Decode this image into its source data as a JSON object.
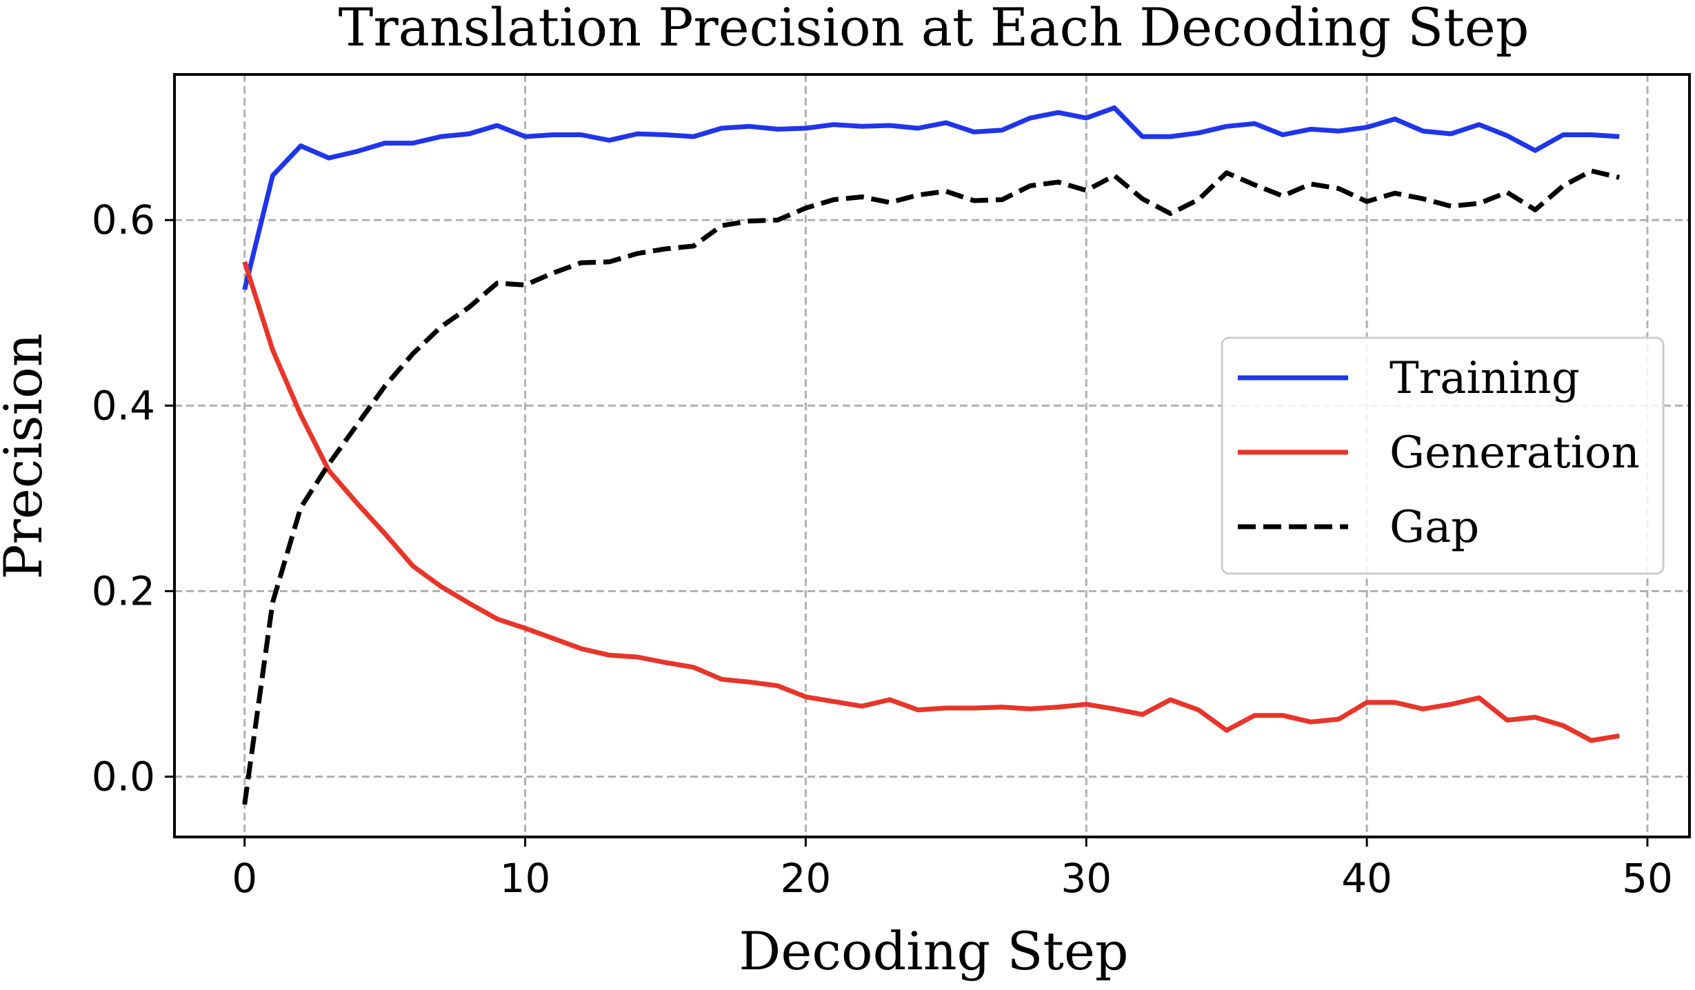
{
  "chart_data": {
    "type": "line",
    "title": "Translation Precision at Each Decoding Step",
    "xlabel": "Decoding Step",
    "ylabel": "Precision",
    "xlim": [
      -2.5,
      51.5
    ],
    "ylim": [
      -0.065,
      0.757
    ],
    "xticks": [
      0,
      10,
      20,
      30,
      40,
      50
    ],
    "xtick_labels": [
      "0",
      "10",
      "20",
      "30",
      "40",
      "50"
    ],
    "yticks": [
      0.0,
      0.2,
      0.4,
      0.6
    ],
    "ytick_labels": [
      "0.0",
      "0.2",
      "0.4",
      "0.6"
    ],
    "grid": true,
    "legend_position": "center-right",
    "x": [
      0,
      1,
      2,
      3,
      4,
      5,
      6,
      7,
      8,
      9,
      10,
      11,
      12,
      13,
      14,
      15,
      16,
      17,
      18,
      19,
      20,
      21,
      22,
      23,
      24,
      25,
      26,
      27,
      28,
      29,
      30,
      31,
      32,
      33,
      34,
      35,
      36,
      37,
      38,
      39,
      40,
      41,
      42,
      43,
      44,
      45,
      46,
      47,
      48,
      49
    ],
    "series": [
      {
        "name": "Training",
        "color": "#1f35ea",
        "dash": "solid",
        "values": [
          0.525,
          0.648,
          0.68,
          0.667,
          0.674,
          0.683,
          0.683,
          0.69,
          0.693,
          0.702,
          0.69,
          0.692,
          0.692,
          0.686,
          0.693,
          0.692,
          0.69,
          0.699,
          0.701,
          0.698,
          0.699,
          0.703,
          0.701,
          0.702,
          0.699,
          0.705,
          0.695,
          0.697,
          0.71,
          0.716,
          0.71,
          0.721,
          0.69,
          0.69,
          0.694,
          0.701,
          0.704,
          0.692,
          0.698,
          0.696,
          0.7,
          0.709,
          0.696,
          0.693,
          0.703,
          0.691,
          0.675,
          0.692,
          0.692,
          0.69
        ]
      },
      {
        "name": "Generation",
        "color": "#e8352a",
        "dash": "solid",
        "values": [
          0.555,
          0.46,
          0.39,
          0.33,
          0.295,
          0.262,
          0.227,
          0.205,
          0.187,
          0.17,
          0.16,
          0.149,
          0.138,
          0.131,
          0.129,
          0.123,
          0.118,
          0.105,
          0.102,
          0.098,
          0.086,
          0.081,
          0.076,
          0.083,
          0.072,
          0.074,
          0.074,
          0.075,
          0.073,
          0.075,
          0.078,
          0.073,
          0.067,
          0.083,
          0.072,
          0.05,
          0.066,
          0.066,
          0.059,
          0.062,
          0.08,
          0.08,
          0.073,
          0.078,
          0.085,
          0.061,
          0.064,
          0.055,
          0.039,
          0.044
        ]
      },
      {
        "name": "Gap",
        "color": "#000000",
        "dash": "dashed",
        "values": [
          -0.03,
          0.188,
          0.29,
          0.337,
          0.379,
          0.421,
          0.456,
          0.485,
          0.506,
          0.532,
          0.53,
          0.543,
          0.554,
          0.555,
          0.564,
          0.569,
          0.572,
          0.594,
          0.599,
          0.6,
          0.613,
          0.622,
          0.625,
          0.619,
          0.627,
          0.631,
          0.621,
          0.622,
          0.637,
          0.641,
          0.632,
          0.648,
          0.623,
          0.607,
          0.622,
          0.651,
          0.638,
          0.626,
          0.639,
          0.634,
          0.62,
          0.629,
          0.623,
          0.615,
          0.618,
          0.63,
          0.611,
          0.637,
          0.653,
          0.646
        ]
      }
    ]
  }
}
